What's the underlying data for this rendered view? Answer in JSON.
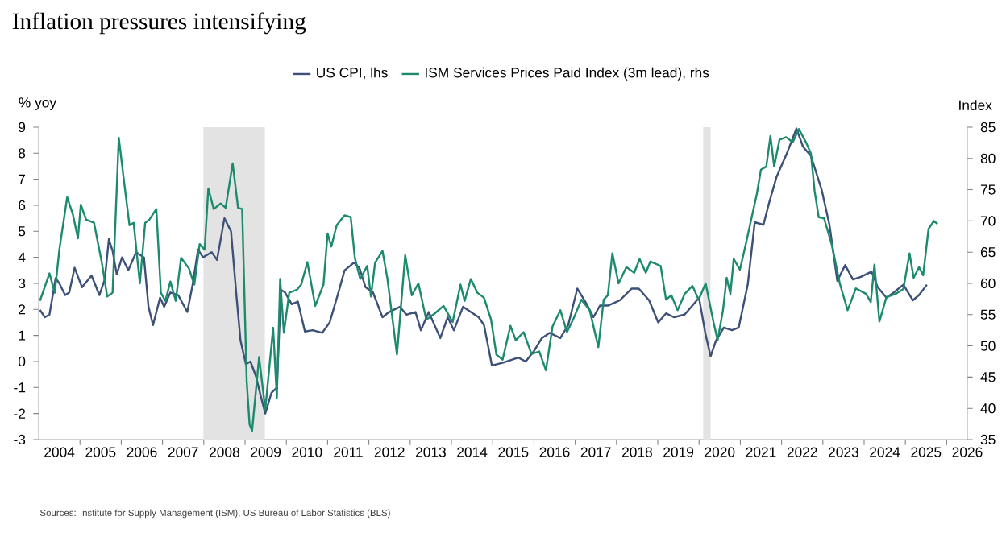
{
  "chart_data": {
    "type": "line",
    "title": "Inflation pressures intensifying",
    "ylabel": "% yoy",
    "y2label": "Index",
    "annotations": [
      "Sources: Institute for Supply Management (ISM), US Bureau of Labor Statistics (BLS)"
    ],
    "legend": "top",
    "xlim": [
      2004,
      2026.5
    ],
    "ylim": [
      -3,
      9
    ],
    "y2lim": [
      35,
      85
    ],
    "yticks": [
      -3,
      -2,
      -1,
      0,
      1,
      2,
      3,
      4,
      5,
      6,
      7,
      8,
      9
    ],
    "y2ticks": [
      35,
      40,
      45,
      50,
      55,
      60,
      65,
      70,
      75,
      80,
      85
    ],
    "xticks": [
      {
        "value": 2004.5,
        "label": "2004"
      },
      {
        "value": 2005.5,
        "label": "2005"
      },
      {
        "value": 2006.5,
        "label": "2006"
      },
      {
        "value": 2007.5,
        "label": "2007"
      },
      {
        "value": 2008.5,
        "label": "2008"
      },
      {
        "value": 2009.5,
        "label": "2009"
      },
      {
        "value": 2010.5,
        "label": "2010"
      },
      {
        "value": 2011.5,
        "label": "2011"
      },
      {
        "value": 2012.5,
        "label": "2012"
      },
      {
        "value": 2013.5,
        "label": "2013"
      },
      {
        "value": 2014.5,
        "label": "2014"
      },
      {
        "value": 2015.5,
        "label": "2015"
      },
      {
        "value": 2016.5,
        "label": "2016"
      },
      {
        "value": 2017.5,
        "label": "2017"
      },
      {
        "value": 2018.5,
        "label": "2018"
      },
      {
        "value": 2019.5,
        "label": "2019"
      },
      {
        "value": 2020.5,
        "label": "2020"
      },
      {
        "value": 2021.5,
        "label": "2021"
      },
      {
        "value": 2022.5,
        "label": "2022"
      },
      {
        "value": 2023.5,
        "label": "2023"
      },
      {
        "value": 2024.5,
        "label": "2024"
      },
      {
        "value": 2025.5,
        "label": "2025"
      },
      {
        "value": 2026.5,
        "label": "2026"
      },
      {
        "value": 2005,
        "label": null
      },
      {
        "value": 2006,
        "label": null
      },
      {
        "value": 2007,
        "label": null
      },
      {
        "value": 2008,
        "label": null
      },
      {
        "value": 2009,
        "label": null
      },
      {
        "value": 2010,
        "label": null
      },
      {
        "value": 2011,
        "label": null
      },
      {
        "value": 2012,
        "label": null
      },
      {
        "value": 2013,
        "label": null
      },
      {
        "value": 2014,
        "label": null
      },
      {
        "value": 2015,
        "label": null
      },
      {
        "value": 2016,
        "label": null
      },
      {
        "value": 2017,
        "label": null
      },
      {
        "value": 2018,
        "label": null
      },
      {
        "value": 2019,
        "label": null
      },
      {
        "value": 2020,
        "label": null
      },
      {
        "value": 2021,
        "label": null
      },
      {
        "value": 2022,
        "label": null
      },
      {
        "value": 2023,
        "label": null
      },
      {
        "value": 2024,
        "label": null
      },
      {
        "value": 2025,
        "label": null
      },
      {
        "value": 2026,
        "label": null
      }
    ],
    "bands": [
      {
        "axis": "x",
        "from": 2007.99,
        "to": 2009.48,
        "color": "#e2e3e2"
      },
      {
        "axis": "x",
        "from": 2020.1,
        "to": 2020.28,
        "color": "#e2e3e2"
      }
    ],
    "series": [
      {
        "name": "US CPI, lhs",
        "color": "#3d5078",
        "axis": "y",
        "x": [
          2004.03,
          2004.15,
          2004.26,
          2004.41,
          2004.5,
          2004.64,
          2004.74,
          2004.87,
          2005.05,
          2005.28,
          2005.47,
          2005.6,
          2005.7,
          2005.79,
          2005.89,
          2006.02,
          2006.17,
          2006.36,
          2006.55,
          2006.66,
          2006.77,
          2006.94,
          2007.04,
          2007.19,
          2007.38,
          2007.6,
          2007.73,
          2007.86,
          2007.98,
          2008.19,
          2008.32,
          2008.5,
          2008.66,
          2008.79,
          2008.89,
          2009.02,
          2009.13,
          2009.26,
          2009.36,
          2009.49,
          2009.64,
          2009.77,
          2009.87,
          2009.97,
          2010.13,
          2010.28,
          2010.45,
          2010.64,
          2010.87,
          2011.05,
          2011.28,
          2011.41,
          2011.64,
          2011.77,
          2011.92,
          2012.1,
          2012.33,
          2012.49,
          2012.75,
          2012.91,
          2013.13,
          2013.26,
          2013.45,
          2013.73,
          2013.91,
          2014.06,
          2014.28,
          2014.47,
          2014.66,
          2014.79,
          2014.98,
          2015.24,
          2015.62,
          2015.8,
          2016.0,
          2016.19,
          2016.38,
          2016.64,
          2016.83,
          2017.05,
          2017.28,
          2017.44,
          2017.6,
          2017.8,
          2018.08,
          2018.37,
          2018.54,
          2018.79,
          2019.01,
          2019.2,
          2019.39,
          2019.65,
          2019.84,
          2020.0,
          2020.15,
          2020.28,
          2020.41,
          2020.6,
          2020.8,
          2020.96,
          2021.18,
          2021.35,
          2021.56,
          2021.69,
          2021.88,
          2022.13,
          2022.36,
          2022.52,
          2022.71,
          2022.97,
          2023.16,
          2023.35,
          2023.54,
          2023.73,
          2023.92,
          2024.18,
          2024.33,
          2024.54,
          2024.72,
          2024.95,
          2025.18,
          2025.33,
          2025.52
        ],
        "values": [
          1.98,
          1.7,
          1.8,
          3.2,
          3.0,
          2.55,
          2.65,
          3.6,
          2.85,
          3.3,
          2.55,
          3.15,
          4.7,
          4.25,
          3.35,
          4.0,
          3.5,
          4.2,
          4.0,
          2.1,
          1.4,
          2.45,
          2.1,
          2.65,
          2.55,
          1.9,
          2.95,
          4.3,
          4.0,
          4.2,
          3.9,
          5.5,
          5.0,
          2.55,
          0.8,
          -0.1,
          0.0,
          -0.55,
          -1.2,
          -2.0,
          -1.2,
          -1.0,
          2.75,
          2.65,
          2.2,
          2.3,
          1.15,
          1.2,
          1.1,
          1.5,
          2.75,
          3.5,
          3.8,
          3.6,
          2.85,
          2.65,
          1.7,
          1.9,
          2.1,
          1.8,
          1.9,
          1.2,
          1.9,
          0.9,
          1.7,
          1.2,
          2.1,
          1.9,
          1.7,
          1.4,
          -0.15,
          -0.05,
          0.15,
          0.0,
          0.4,
          0.9,
          1.1,
          0.9,
          1.4,
          2.8,
          2.2,
          1.7,
          2.15,
          2.15,
          2.35,
          2.8,
          2.8,
          2.35,
          1.5,
          1.85,
          1.7,
          1.8,
          2.15,
          2.45,
          1.1,
          0.2,
          0.8,
          1.3,
          1.2,
          1.3,
          2.95,
          5.35,
          5.25,
          6.05,
          7.1,
          8.0,
          8.95,
          8.25,
          7.9,
          6.6,
          5.25,
          3.1,
          3.7,
          3.15,
          3.25,
          3.45,
          2.85,
          2.45,
          2.65,
          2.95,
          2.35,
          2.55,
          2.95
        ]
      },
      {
        "name": "ISM Services Prices Paid Index (3m lead), rhs",
        "color": "#1c8a6c",
        "axis": "y2",
        "x": [
          2004.03,
          2004.26,
          2004.39,
          2004.5,
          2004.69,
          2004.83,
          2004.95,
          2005.02,
          2005.15,
          2005.34,
          2005.53,
          2005.66,
          2005.79,
          2005.94,
          2006.07,
          2006.2,
          2006.3,
          2006.45,
          2006.58,
          2006.68,
          2006.85,
          2006.96,
          2007.07,
          2007.19,
          2007.32,
          2007.45,
          2007.64,
          2007.77,
          2007.9,
          2008.02,
          2008.11,
          2008.24,
          2008.41,
          2008.53,
          2008.7,
          2008.83,
          2008.93,
          2009.04,
          2009.11,
          2009.17,
          2009.34,
          2009.49,
          2009.68,
          2009.77,
          2009.85,
          2009.94,
          2010.07,
          2010.26,
          2010.36,
          2010.51,
          2010.7,
          2010.9,
          2011.0,
          2011.09,
          2011.22,
          2011.41,
          2011.56,
          2011.66,
          2011.79,
          2011.96,
          2012.05,
          2012.15,
          2012.33,
          2012.45,
          2012.68,
          2012.88,
          2013.04,
          2013.2,
          2013.39,
          2013.58,
          2013.81,
          2014.03,
          2014.22,
          2014.32,
          2014.47,
          2014.63,
          2014.79,
          2014.96,
          2015.09,
          2015.24,
          2015.43,
          2015.56,
          2015.75,
          2015.94,
          2016.13,
          2016.29,
          2016.45,
          2016.64,
          2016.8,
          2016.96,
          2017.15,
          2017.35,
          2017.56,
          2017.69,
          2017.79,
          2017.9,
          2018.05,
          2018.24,
          2018.43,
          2018.56,
          2018.71,
          2018.82,
          2019.07,
          2019.2,
          2019.33,
          2019.48,
          2019.65,
          2019.84,
          2019.99,
          2020.16,
          2020.35,
          2020.45,
          2020.58,
          2020.67,
          2020.76,
          2020.84,
          2020.99,
          2021.11,
          2021.27,
          2021.4,
          2021.5,
          2021.63,
          2021.73,
          2021.82,
          2021.95,
          2022.11,
          2022.27,
          2022.42,
          2022.59,
          2022.71,
          2022.8,
          2022.9,
          2023.03,
          2023.22,
          2023.41,
          2023.6,
          2023.8,
          2024.05,
          2024.16,
          2024.25,
          2024.37,
          2024.54,
          2024.76,
          2024.95,
          2025.1,
          2025.2,
          2025.33,
          2025.43,
          2025.56,
          2025.69,
          2025.78
        ],
        "values": [
          57.2,
          61.6,
          58.5,
          65.4,
          73.8,
          71.0,
          67.2,
          72.6,
          70.2,
          69.7,
          63.3,
          57.9,
          58.5,
          83.3,
          76.2,
          69.3,
          69.7,
          60.0,
          69.7,
          70.2,
          71.9,
          58.5,
          57.2,
          60.3,
          57.2,
          64.1,
          62.4,
          59.8,
          66.3,
          65.4,
          75.2,
          71.9,
          72.8,
          72.1,
          79.2,
          72.1,
          71.9,
          44.3,
          37.4,
          36.4,
          48.2,
          39.8,
          52.9,
          41.7,
          60.7,
          52.1,
          58.5,
          59.0,
          59.8,
          63.4,
          56.4,
          59.8,
          68.0,
          65.9,
          69.3,
          70.9,
          70.6,
          64.1,
          60.7,
          62.8,
          57.9,
          63.3,
          65.2,
          60.7,
          48.6,
          64.5,
          58.1,
          60.0,
          54.2,
          55.1,
          56.4,
          53.8,
          59.8,
          57.2,
          60.7,
          58.5,
          57.7,
          54.2,
          48.6,
          47.8,
          53.2,
          50.9,
          52.2,
          48.7,
          49.1,
          46.1,
          53.1,
          55.7,
          52.2,
          54.4,
          57.4,
          55.7,
          49.8,
          57.4,
          58.1,
          64.8,
          60.0,
          62.6,
          61.7,
          63.9,
          61.7,
          63.5,
          62.8,
          57.4,
          58.1,
          55.7,
          58.3,
          59.6,
          57.4,
          60.0,
          53.8,
          50.9,
          55.7,
          60.9,
          58.3,
          63.9,
          62.2,
          65.6,
          70.4,
          74.3,
          78.2,
          78.7,
          83.6,
          78.7,
          83.0,
          83.4,
          82.6,
          84.7,
          82.6,
          80.8,
          74.8,
          70.6,
          70.4,
          66.1,
          60.0,
          55.7,
          59.2,
          58.3,
          57.0,
          63.0,
          53.9,
          57.8,
          58.3,
          59.1,
          64.8,
          60.9,
          62.6,
          61.3,
          68.7,
          70.0,
          69.5
        ]
      }
    ]
  }
}
